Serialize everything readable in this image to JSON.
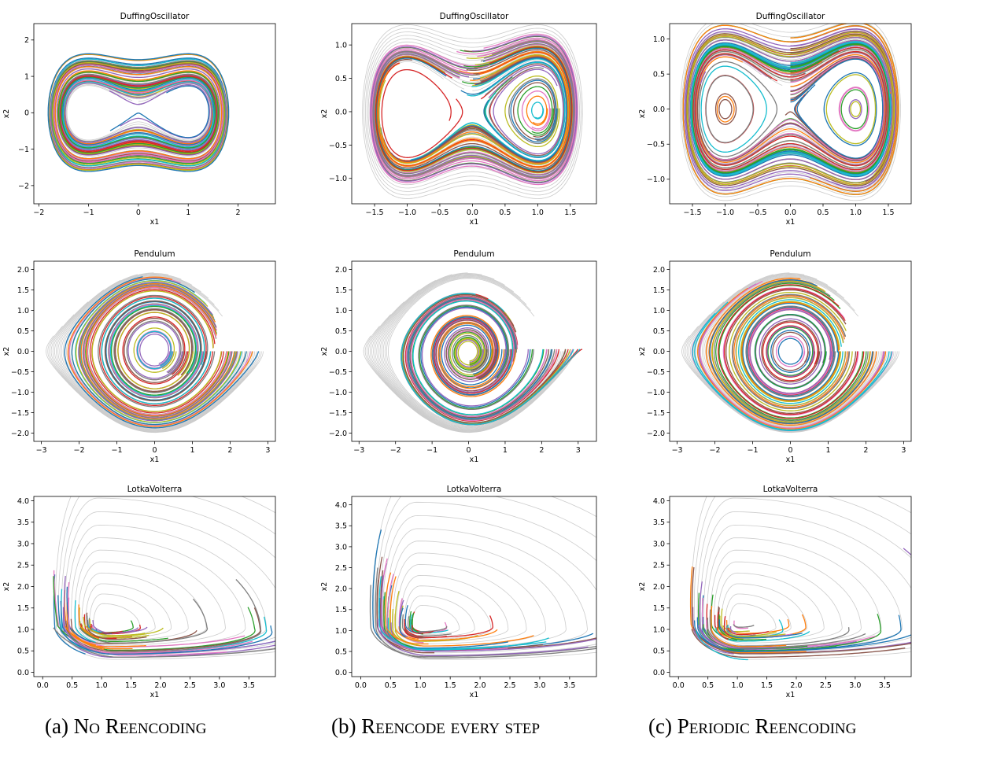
{
  "figure": {
    "colors": [
      "#1f77b4",
      "#ff7f0e",
      "#2ca02c",
      "#d62728",
      "#9467bd",
      "#8c564b",
      "#e377c2",
      "#7f7f7f",
      "#bcbd22",
      "#17becf"
    ],
    "ground_truth_color": "#cccccc",
    "captions": [
      {
        "prefix": "(a) ",
        "text": "No Reencoding"
      },
      {
        "prefix": "(b) ",
        "text": "Reencode every step"
      },
      {
        "prefix": "(c) ",
        "text": "Periodic Reencoding"
      }
    ]
  },
  "chart_data": [
    {
      "type": "line",
      "panel": "a-duffing",
      "title": "DuffingOscillator",
      "xlabel": "x1",
      "ylabel": "x2",
      "xlim": [
        -2.1,
        2.75
      ],
      "ylim": [
        -2.5,
        2.45
      ],
      "xticks": [
        -2,
        -1,
        0,
        1,
        2
      ],
      "yticks": [
        -2,
        -1,
        0,
        1,
        2
      ],
      "system": "duffing",
      "mode": "none",
      "grid": false
    },
    {
      "type": "line",
      "panel": "b-duffing",
      "title": "DuffingOscillator",
      "xlabel": "x1",
      "ylabel": "x2",
      "xlim": [
        -1.85,
        1.9
      ],
      "ylim": [
        -1.38,
        1.32
      ],
      "xticks": [
        -1.5,
        -1.0,
        -0.5,
        0.0,
        0.5,
        1.0,
        1.5
      ],
      "yticks": [
        -1.0,
        -0.5,
        0.0,
        0.5,
        1.0
      ],
      "system": "duffing",
      "mode": "every",
      "grid": false
    },
    {
      "type": "line",
      "panel": "c-duffing",
      "title": "DuffingOscillator",
      "xlabel": "x1",
      "ylabel": "x2",
      "xlim": [
        -1.85,
        1.85
      ],
      "ylim": [
        -1.35,
        1.22
      ],
      "xticks": [
        -1.5,
        -1.0,
        -0.5,
        0.0,
        0.5,
        1.0,
        1.5
      ],
      "yticks": [
        -1.0,
        -0.5,
        0.0,
        0.5,
        1.0
      ],
      "system": "duffing",
      "mode": "periodic",
      "grid": false
    },
    {
      "type": "line",
      "panel": "a-pendulum",
      "title": "Pendulum",
      "xlabel": "x1",
      "ylabel": "x2",
      "xlim": [
        -3.2,
        3.2
      ],
      "ylim": [
        -2.2,
        2.2
      ],
      "xticks": [
        -3,
        -2,
        -1,
        0,
        1,
        2,
        3
      ],
      "yticks": [
        -2.0,
        -1.5,
        -1.0,
        -0.5,
        0.0,
        0.5,
        1.0,
        1.5,
        2.0
      ],
      "system": "pendulum",
      "mode": "none",
      "grid": false
    },
    {
      "type": "line",
      "panel": "b-pendulum",
      "title": "Pendulum",
      "xlabel": "x1",
      "ylabel": "x2",
      "xlim": [
        -3.2,
        3.5
      ],
      "ylim": [
        -2.2,
        2.2
      ],
      "xticks": [
        -3,
        -2,
        -1,
        0,
        1,
        2,
        3
      ],
      "yticks": [
        -2.0,
        -1.5,
        -1.0,
        -0.5,
        0.0,
        0.5,
        1.0,
        1.5,
        2.0
      ],
      "system": "pendulum",
      "mode": "every",
      "grid": false
    },
    {
      "type": "line",
      "panel": "c-pendulum",
      "title": "Pendulum",
      "xlabel": "x1",
      "ylabel": "x2",
      "xlim": [
        -3.2,
        3.2
      ],
      "ylim": [
        -2.2,
        2.2
      ],
      "xticks": [
        -3,
        -2,
        -1,
        0,
        1,
        2,
        3
      ],
      "yticks": [
        -2.0,
        -1.5,
        -1.0,
        -0.5,
        0.0,
        0.5,
        1.0,
        1.5,
        2.0
      ],
      "system": "pendulum",
      "mode": "periodic",
      "grid": false
    },
    {
      "type": "line",
      "panel": "a-lotka",
      "title": "LotkaVolterra",
      "xlabel": "x1",
      "ylabel": "x2",
      "xlim": [
        -0.15,
        3.95
      ],
      "ylim": [
        -0.1,
        4.1
      ],
      "xticks": [
        0.0,
        0.5,
        1.0,
        1.5,
        2.0,
        2.5,
        3.0,
        3.5
      ],
      "yticks": [
        0.0,
        0.5,
        1.0,
        1.5,
        2.0,
        2.5,
        3.0,
        3.5,
        4.0
      ],
      "system": "lotka",
      "mode": "none",
      "grid": false
    },
    {
      "type": "line",
      "panel": "b-lotka",
      "title": "LotkaVolterra",
      "xlabel": "x1",
      "ylabel": "x2",
      "xlim": [
        -0.15,
        3.95
      ],
      "ylim": [
        -0.1,
        4.2
      ],
      "xticks": [
        0.0,
        0.5,
        1.0,
        1.5,
        2.0,
        2.5,
        3.0,
        3.5
      ],
      "yticks": [
        0.0,
        0.5,
        1.0,
        1.5,
        2.0,
        2.5,
        3.0,
        3.5,
        4.0
      ],
      "system": "lotka",
      "mode": "every",
      "grid": false
    },
    {
      "type": "line",
      "panel": "c-lotka",
      "title": "LotkaVolterra",
      "xlabel": "x1",
      "ylabel": "x2",
      "xlim": [
        -0.15,
        3.95
      ],
      "ylim": [
        -0.1,
        4.1
      ],
      "xticks": [
        0.0,
        0.5,
        1.0,
        1.5,
        2.0,
        2.5,
        3.0,
        3.5
      ],
      "yticks": [
        0.0,
        0.5,
        1.0,
        1.5,
        2.0,
        2.5,
        3.0,
        3.5,
        4.0
      ],
      "system": "lotka",
      "mode": "periodic",
      "grid": false
    }
  ]
}
